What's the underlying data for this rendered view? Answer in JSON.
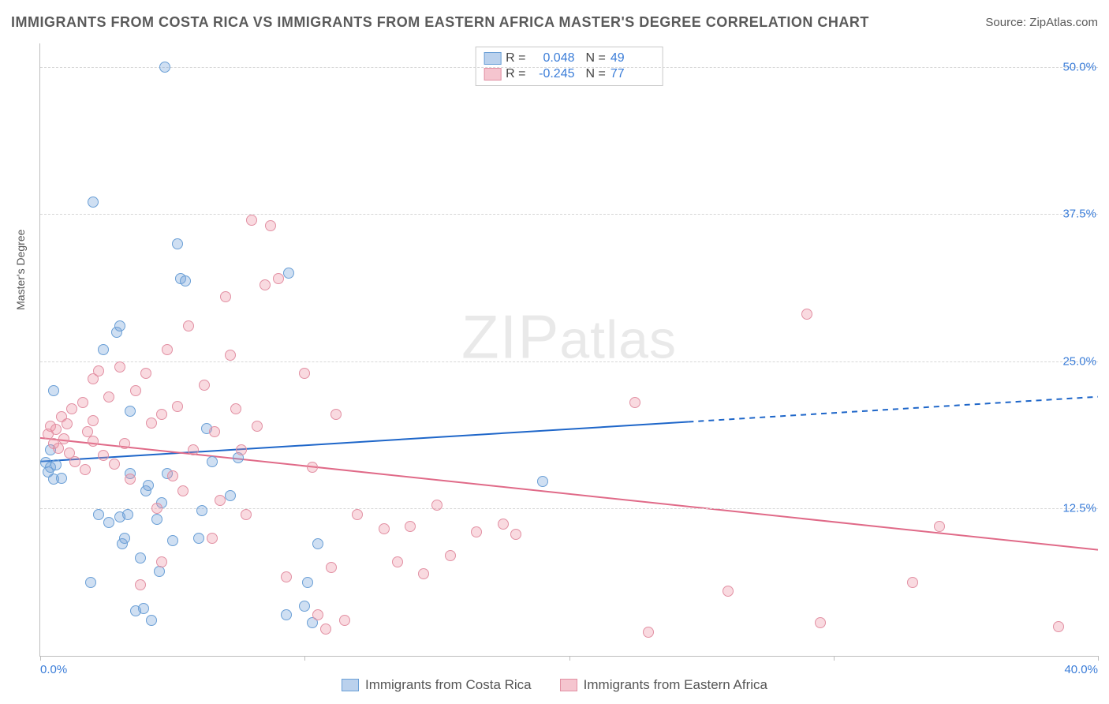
{
  "title": "IMMIGRANTS FROM COSTA RICA VS IMMIGRANTS FROM EASTERN AFRICA MASTER'S DEGREE CORRELATION CHART",
  "source_prefix": "Source: ",
  "source_name": "ZipAtlas.com",
  "watermark_a": "ZIP",
  "watermark_b": "atlas",
  "ylabel": "Master's Degree",
  "chart": {
    "type": "scatter",
    "background_color": "#ffffff",
    "grid_color": "#d7d7d7",
    "axis_color": "#bdbdbd",
    "xlim": [
      0,
      40
    ],
    "ylim": [
      0,
      52
    ],
    "x_ticks": [
      0,
      10,
      20,
      30,
      40
    ],
    "x_tick_labels": [
      "0.0%",
      "",
      "",
      "",
      "40.0%"
    ],
    "y_gridlines": [
      12.5,
      25.0,
      37.5,
      50.0
    ],
    "y_tick_labels": [
      "12.5%",
      "25.0%",
      "37.5%",
      "50.0%"
    ],
    "tick_label_color": "#3b7dd8",
    "tick_fontsize": 15,
    "label_fontsize": 14,
    "point_radius": 7,
    "point_border_width": 1.2,
    "series": [
      {
        "key": "costa_rica",
        "label": "Immigrants from Costa Rica",
        "fill": "rgba(118,164,219,0.35)",
        "stroke": "#6a9fd6",
        "swatch_fill": "rgba(118,164,219,0.5)",
        "swatch_border": "#6a9fd6",
        "trend_color": "#1e66c9",
        "trend_width": 2,
        "r": "0.048",
        "n": "49",
        "trend_y_at_xmin": 16.5,
        "trend_y_at_xmax": 22.0,
        "trend_solid_until_x": 24.5,
        "points": [
          [
            0.2,
            16.4
          ],
          [
            0.3,
            15.6
          ],
          [
            0.4,
            16.0
          ],
          [
            0.5,
            15.0
          ],
          [
            0.6,
            16.2
          ],
          [
            0.4,
            17.5
          ],
          [
            0.8,
            15.1
          ],
          [
            0.5,
            22.5
          ],
          [
            2.0,
            38.5
          ],
          [
            2.4,
            26.0
          ],
          [
            2.6,
            11.3
          ],
          [
            4.7,
            50.0
          ],
          [
            2.9,
            27.5
          ],
          [
            3.0,
            28.0
          ],
          [
            3.1,
            9.5
          ],
          [
            3.2,
            10.0
          ],
          [
            3.3,
            12.0
          ],
          [
            3.4,
            15.5
          ],
          [
            3.0,
            11.8
          ],
          [
            3.6,
            3.8
          ],
          [
            1.9,
            6.2
          ],
          [
            3.8,
            8.3
          ],
          [
            3.9,
            4.0
          ],
          [
            4.0,
            14.0
          ],
          [
            4.1,
            14.5
          ],
          [
            4.2,
            3.0
          ],
          [
            2.2,
            12.0
          ],
          [
            4.4,
            11.6
          ],
          [
            3.4,
            20.8
          ],
          [
            4.6,
            13.0
          ],
          [
            5.3,
            32.0
          ],
          [
            4.8,
            15.5
          ],
          [
            4.5,
            7.2
          ],
          [
            5.0,
            9.8
          ],
          [
            5.2,
            35.0
          ],
          [
            5.5,
            31.8
          ],
          [
            6.0,
            10.0
          ],
          [
            6.1,
            12.3
          ],
          [
            6.3,
            19.3
          ],
          [
            6.5,
            16.5
          ],
          [
            7.2,
            13.6
          ],
          [
            7.5,
            16.8
          ],
          [
            9.4,
            32.5
          ],
          [
            9.3,
            3.5
          ],
          [
            10.0,
            4.2
          ],
          [
            10.1,
            6.2
          ],
          [
            10.3,
            2.8
          ],
          [
            10.5,
            9.5
          ],
          [
            19.0,
            14.8
          ]
        ]
      },
      {
        "key": "eastern_africa",
        "label": "Immigrants from Eastern Africa",
        "fill": "rgba(235,140,160,0.32)",
        "stroke": "#e290a3",
        "swatch_fill": "rgba(235,140,160,0.5)",
        "swatch_border": "#e290a3",
        "trend_color": "#e06a88",
        "trend_width": 2,
        "r": "-0.245",
        "n": "77",
        "trend_y_at_xmin": 18.5,
        "trend_y_at_xmax": 9.0,
        "trend_solid_until_x": 40,
        "points": [
          [
            0.3,
            18.8
          ],
          [
            0.4,
            19.5
          ],
          [
            0.5,
            18.0
          ],
          [
            0.6,
            19.2
          ],
          [
            0.7,
            17.6
          ],
          [
            0.8,
            20.3
          ],
          [
            0.9,
            18.4
          ],
          [
            1.0,
            19.7
          ],
          [
            1.1,
            17.2
          ],
          [
            1.2,
            21.0
          ],
          [
            1.3,
            16.5
          ],
          [
            2.0,
            20.0
          ],
          [
            2.0,
            18.2
          ],
          [
            1.6,
            21.5
          ],
          [
            1.7,
            15.8
          ],
          [
            1.8,
            19.0
          ],
          [
            2.0,
            23.5
          ],
          [
            2.2,
            24.2
          ],
          [
            2.4,
            17.0
          ],
          [
            2.6,
            22.0
          ],
          [
            2.8,
            16.3
          ],
          [
            3.0,
            24.5
          ],
          [
            3.2,
            18.0
          ],
          [
            3.4,
            15.0
          ],
          [
            3.6,
            22.5
          ],
          [
            3.8,
            6.0
          ],
          [
            4.0,
            24.0
          ],
          [
            4.2,
            19.8
          ],
          [
            4.4,
            12.5
          ],
          [
            4.6,
            20.5
          ],
          [
            4.8,
            26.0
          ],
          [
            5.0,
            15.3
          ],
          [
            5.2,
            21.2
          ],
          [
            5.4,
            14.0
          ],
          [
            5.6,
            28.0
          ],
          [
            5.8,
            17.5
          ],
          [
            6.5,
            10.0
          ],
          [
            6.2,
            23.0
          ],
          [
            4.6,
            8.0
          ],
          [
            6.6,
            19.0
          ],
          [
            6.8,
            13.2
          ],
          [
            7.0,
            30.5
          ],
          [
            7.2,
            25.5
          ],
          [
            7.4,
            21.0
          ],
          [
            7.6,
            17.5
          ],
          [
            7.8,
            12.0
          ],
          [
            8.0,
            37.0
          ],
          [
            8.2,
            19.5
          ],
          [
            8.5,
            31.5
          ],
          [
            8.7,
            36.5
          ],
          [
            9.0,
            32.0
          ],
          [
            9.3,
            6.7
          ],
          [
            10.5,
            3.5
          ],
          [
            10.0,
            24.0
          ],
          [
            10.3,
            16.0
          ],
          [
            11.0,
            7.5
          ],
          [
            11.2,
            20.5
          ],
          [
            11.5,
            3.0
          ],
          [
            12.0,
            12.0
          ],
          [
            10.8,
            2.3
          ],
          [
            13.0,
            10.8
          ],
          [
            13.5,
            8.0
          ],
          [
            14.0,
            11.0
          ],
          [
            14.5,
            7.0
          ],
          [
            15.0,
            12.8
          ],
          [
            15.5,
            8.5
          ],
          [
            16.5,
            10.5
          ],
          [
            17.5,
            11.2
          ],
          [
            18.0,
            10.3
          ],
          [
            22.5,
            21.5
          ],
          [
            23.0,
            2.0
          ],
          [
            26.0,
            5.5
          ],
          [
            29.0,
            29.0
          ],
          [
            29.5,
            2.8
          ],
          [
            33.0,
            6.2
          ],
          [
            34.0,
            11.0
          ],
          [
            38.5,
            2.5
          ]
        ]
      }
    ],
    "stats_legend_labels": {
      "r": "R =",
      "n": "N ="
    }
  },
  "bottom_legend": [
    {
      "series": "costa_rica"
    },
    {
      "series": "eastern_africa"
    }
  ]
}
